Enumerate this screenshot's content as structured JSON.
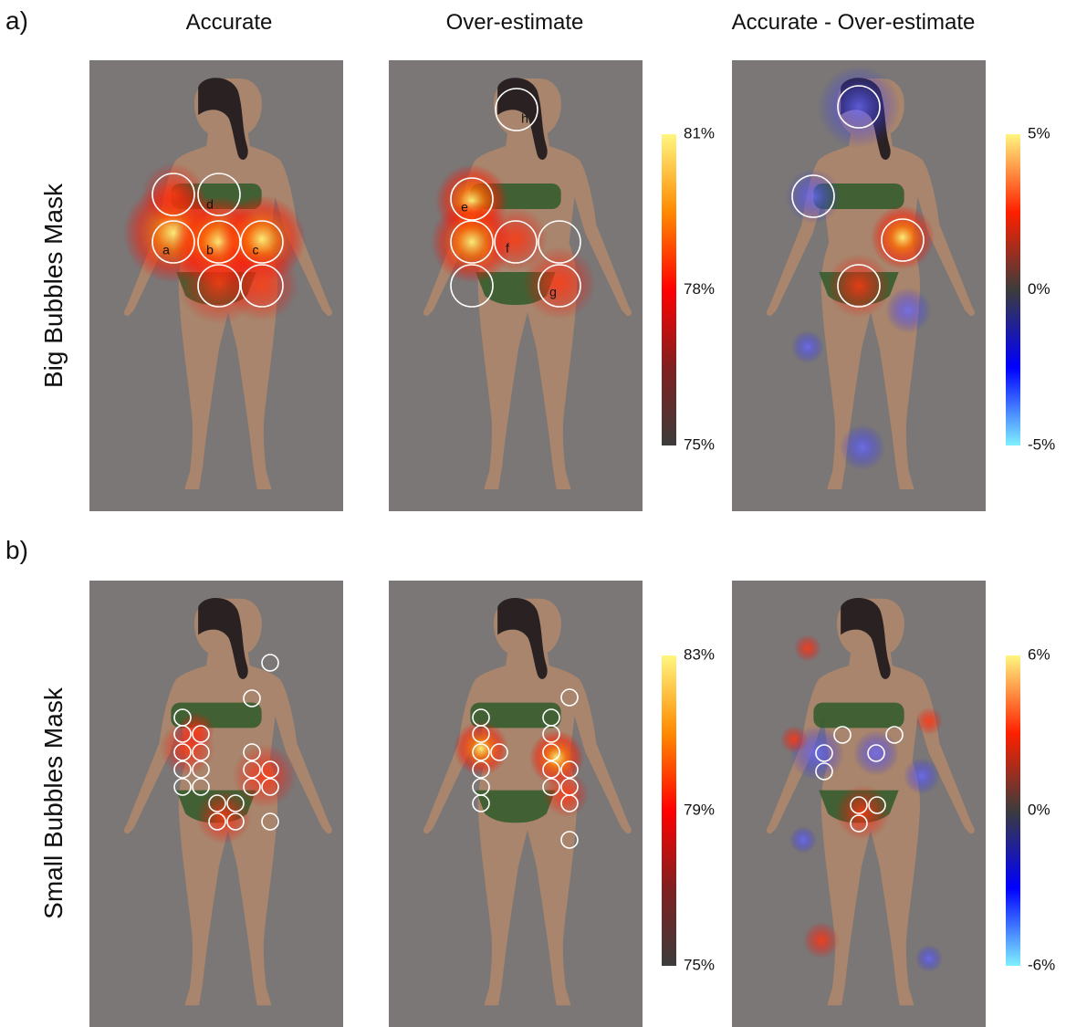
{
  "panel_labels": [
    "a)",
    "b)"
  ],
  "column_titles": [
    "Accurate",
    "Over-estimate",
    "Accurate - Over-estimate"
  ],
  "row_labels": [
    "Big Bubbles Mask",
    "Small Bubbles Mask"
  ],
  "colorbars": [
    {
      "ticks": [
        "81%",
        "78%",
        "75%"
      ]
    },
    {
      "ticks": [
        "5%",
        "0%",
        "-5%"
      ]
    },
    {
      "ticks": [
        "83%",
        "79%",
        "75%"
      ]
    },
    {
      "ticks": [
        "6%",
        "0%",
        "-6%"
      ]
    }
  ],
  "bubble_labels": [
    "a",
    "b",
    "c",
    "d",
    "e",
    "f",
    "g",
    "h"
  ]
}
